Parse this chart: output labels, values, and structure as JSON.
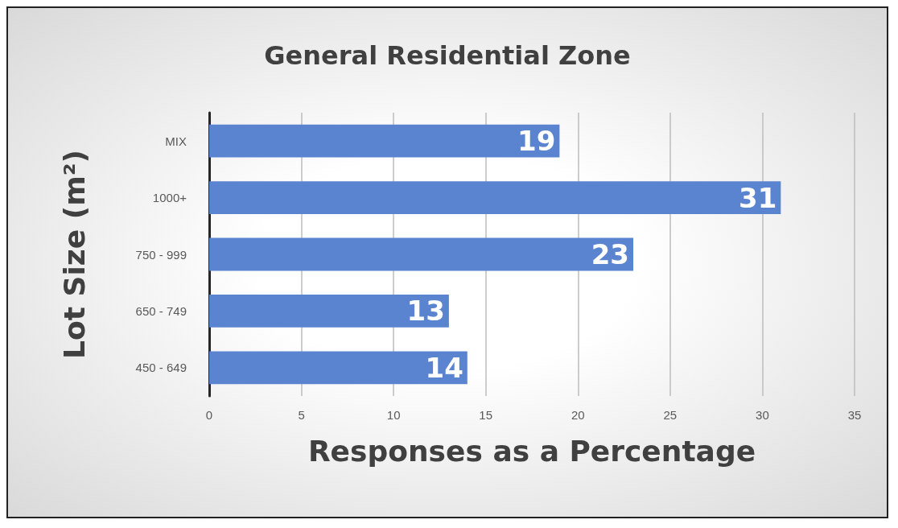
{
  "chart_data": {
    "type": "bar",
    "orientation": "horizontal",
    "title": "General Residential Zone",
    "xlabel": "Responses as a Percentage",
    "ylabel": "Lot Size (m²)",
    "categories": [
      "MIX",
      "1000+",
      "750 - 999",
      "650 - 749",
      "450 - 649"
    ],
    "values": [
      19,
      31,
      23,
      13,
      14
    ],
    "color": "#5b84d0",
    "xlim": [
      0,
      35
    ],
    "xticks": [
      0,
      5,
      10,
      15,
      20,
      25,
      30,
      35
    ],
    "grid": "x",
    "data_labels": true
  }
}
